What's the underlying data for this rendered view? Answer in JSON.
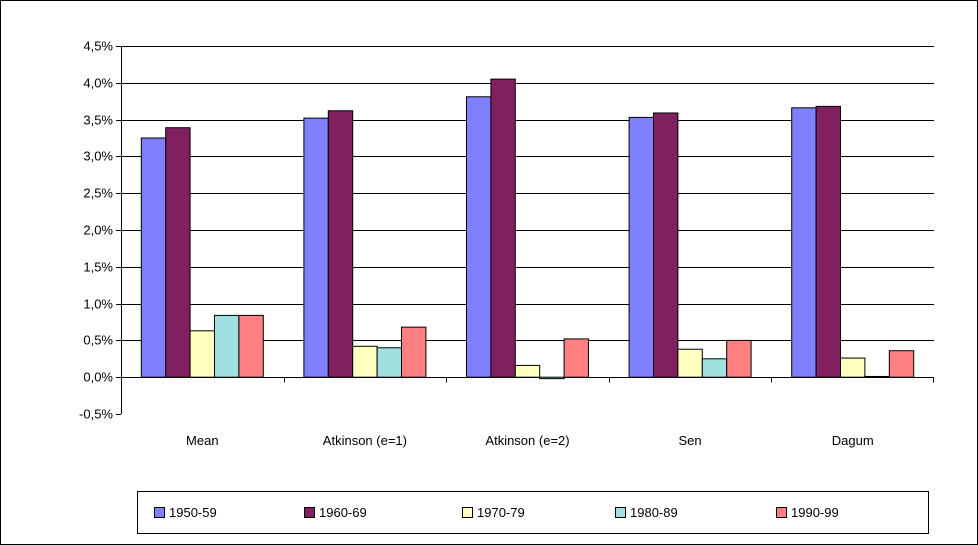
{
  "chart_data": {
    "type": "bar",
    "categories": [
      "Mean",
      "Atkinson (e=1)",
      "Atkinson (e=2)",
      "Sen",
      "Dagum"
    ],
    "series": [
      {
        "name": "1950-59",
        "color": "#8080FF",
        "values": [
          3.25,
          3.52,
          3.81,
          3.53,
          3.66
        ]
      },
      {
        "name": "1960-69",
        "color": "#802060",
        "values": [
          3.39,
          3.62,
          4.05,
          3.59,
          3.68
        ]
      },
      {
        "name": "1970-79",
        "color": "#FFFFC0",
        "values": [
          0.63,
          0.42,
          0.16,
          0.38,
          0.26
        ]
      },
      {
        "name": "1980-89",
        "color": "#A0E0E0",
        "values": [
          0.84,
          0.4,
          -0.02,
          0.25,
          0.01
        ]
      },
      {
        "name": "1990-99",
        "color": "#FF8080",
        "values": [
          0.84,
          0.68,
          0.52,
          0.5,
          0.36
        ]
      }
    ],
    "ylim": [
      -0.5,
      4.5
    ],
    "ytick_step": 0.5,
    "ytick_labels": [
      "-0,5%",
      "0,0%",
      "0,5%",
      "1,0%",
      "1,5%",
      "2,0%",
      "2,5%",
      "3,0%",
      "3,5%",
      "4,0%",
      "4,5%"
    ],
    "grid": true,
    "legend_position": "bottom",
    "title": "",
    "xlabel": "",
    "ylabel": ""
  }
}
